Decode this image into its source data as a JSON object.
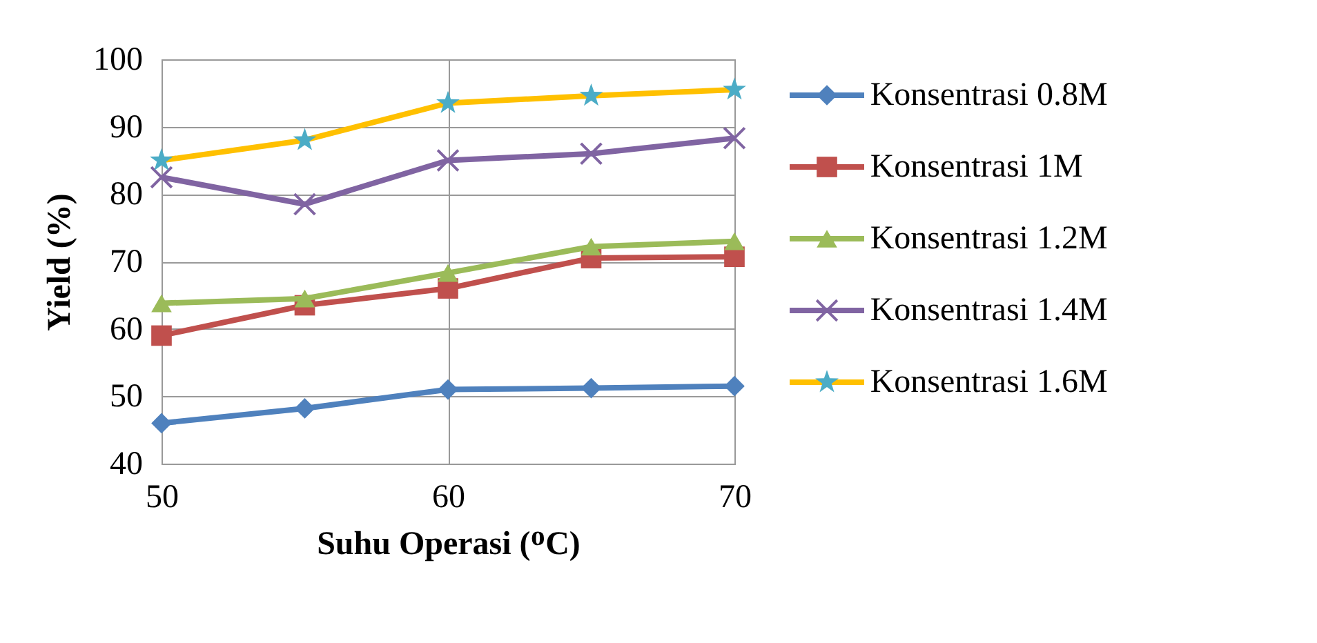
{
  "chart_data": {
    "type": "line",
    "xlabel": "Suhu Operasi (ᴼC)",
    "ylabel": "Yield (%)",
    "x": [
      50,
      55,
      60,
      65,
      70
    ],
    "xlim": [
      50,
      70
    ],
    "xticks": [
      50,
      60,
      70
    ],
    "ylim": [
      40,
      100
    ],
    "yticks": [
      40,
      50,
      60,
      70,
      80,
      90,
      100
    ],
    "grid": true,
    "legend": "right",
    "series": [
      {
        "name": "Konsentrasi 0.8M",
        "color": "#4f81bd",
        "marker": "diamond",
        "values": [
          46,
          48.2,
          51,
          51.2,
          51.5
        ]
      },
      {
        "name": "Konsentrasi 1M",
        "color": "#c0504d",
        "marker": "square",
        "values": [
          59,
          63.5,
          66,
          70.5,
          70.7
        ]
      },
      {
        "name": "Konsentrasi 1.2M",
        "color": "#9bbb59",
        "marker": "triangle",
        "values": [
          63.8,
          64.5,
          68.3,
          72.2,
          73
        ]
      },
      {
        "name": "Konsentrasi 1.4M",
        "color": "#8064a2",
        "marker": "cross",
        "values": [
          82.5,
          78.5,
          85,
          86,
          88.3
        ]
      },
      {
        "name": "Konsentrasi 1.6M",
        "color": "#ffc000",
        "colors": [
          "#4bacc6",
          "#4bacc6",
          "#4bacc6",
          "#4bacc6",
          "#4bacc6"
        ],
        "marker": "star",
        "values": [
          85,
          88,
          93.5,
          94.6,
          95.5
        ]
      }
    ]
  }
}
